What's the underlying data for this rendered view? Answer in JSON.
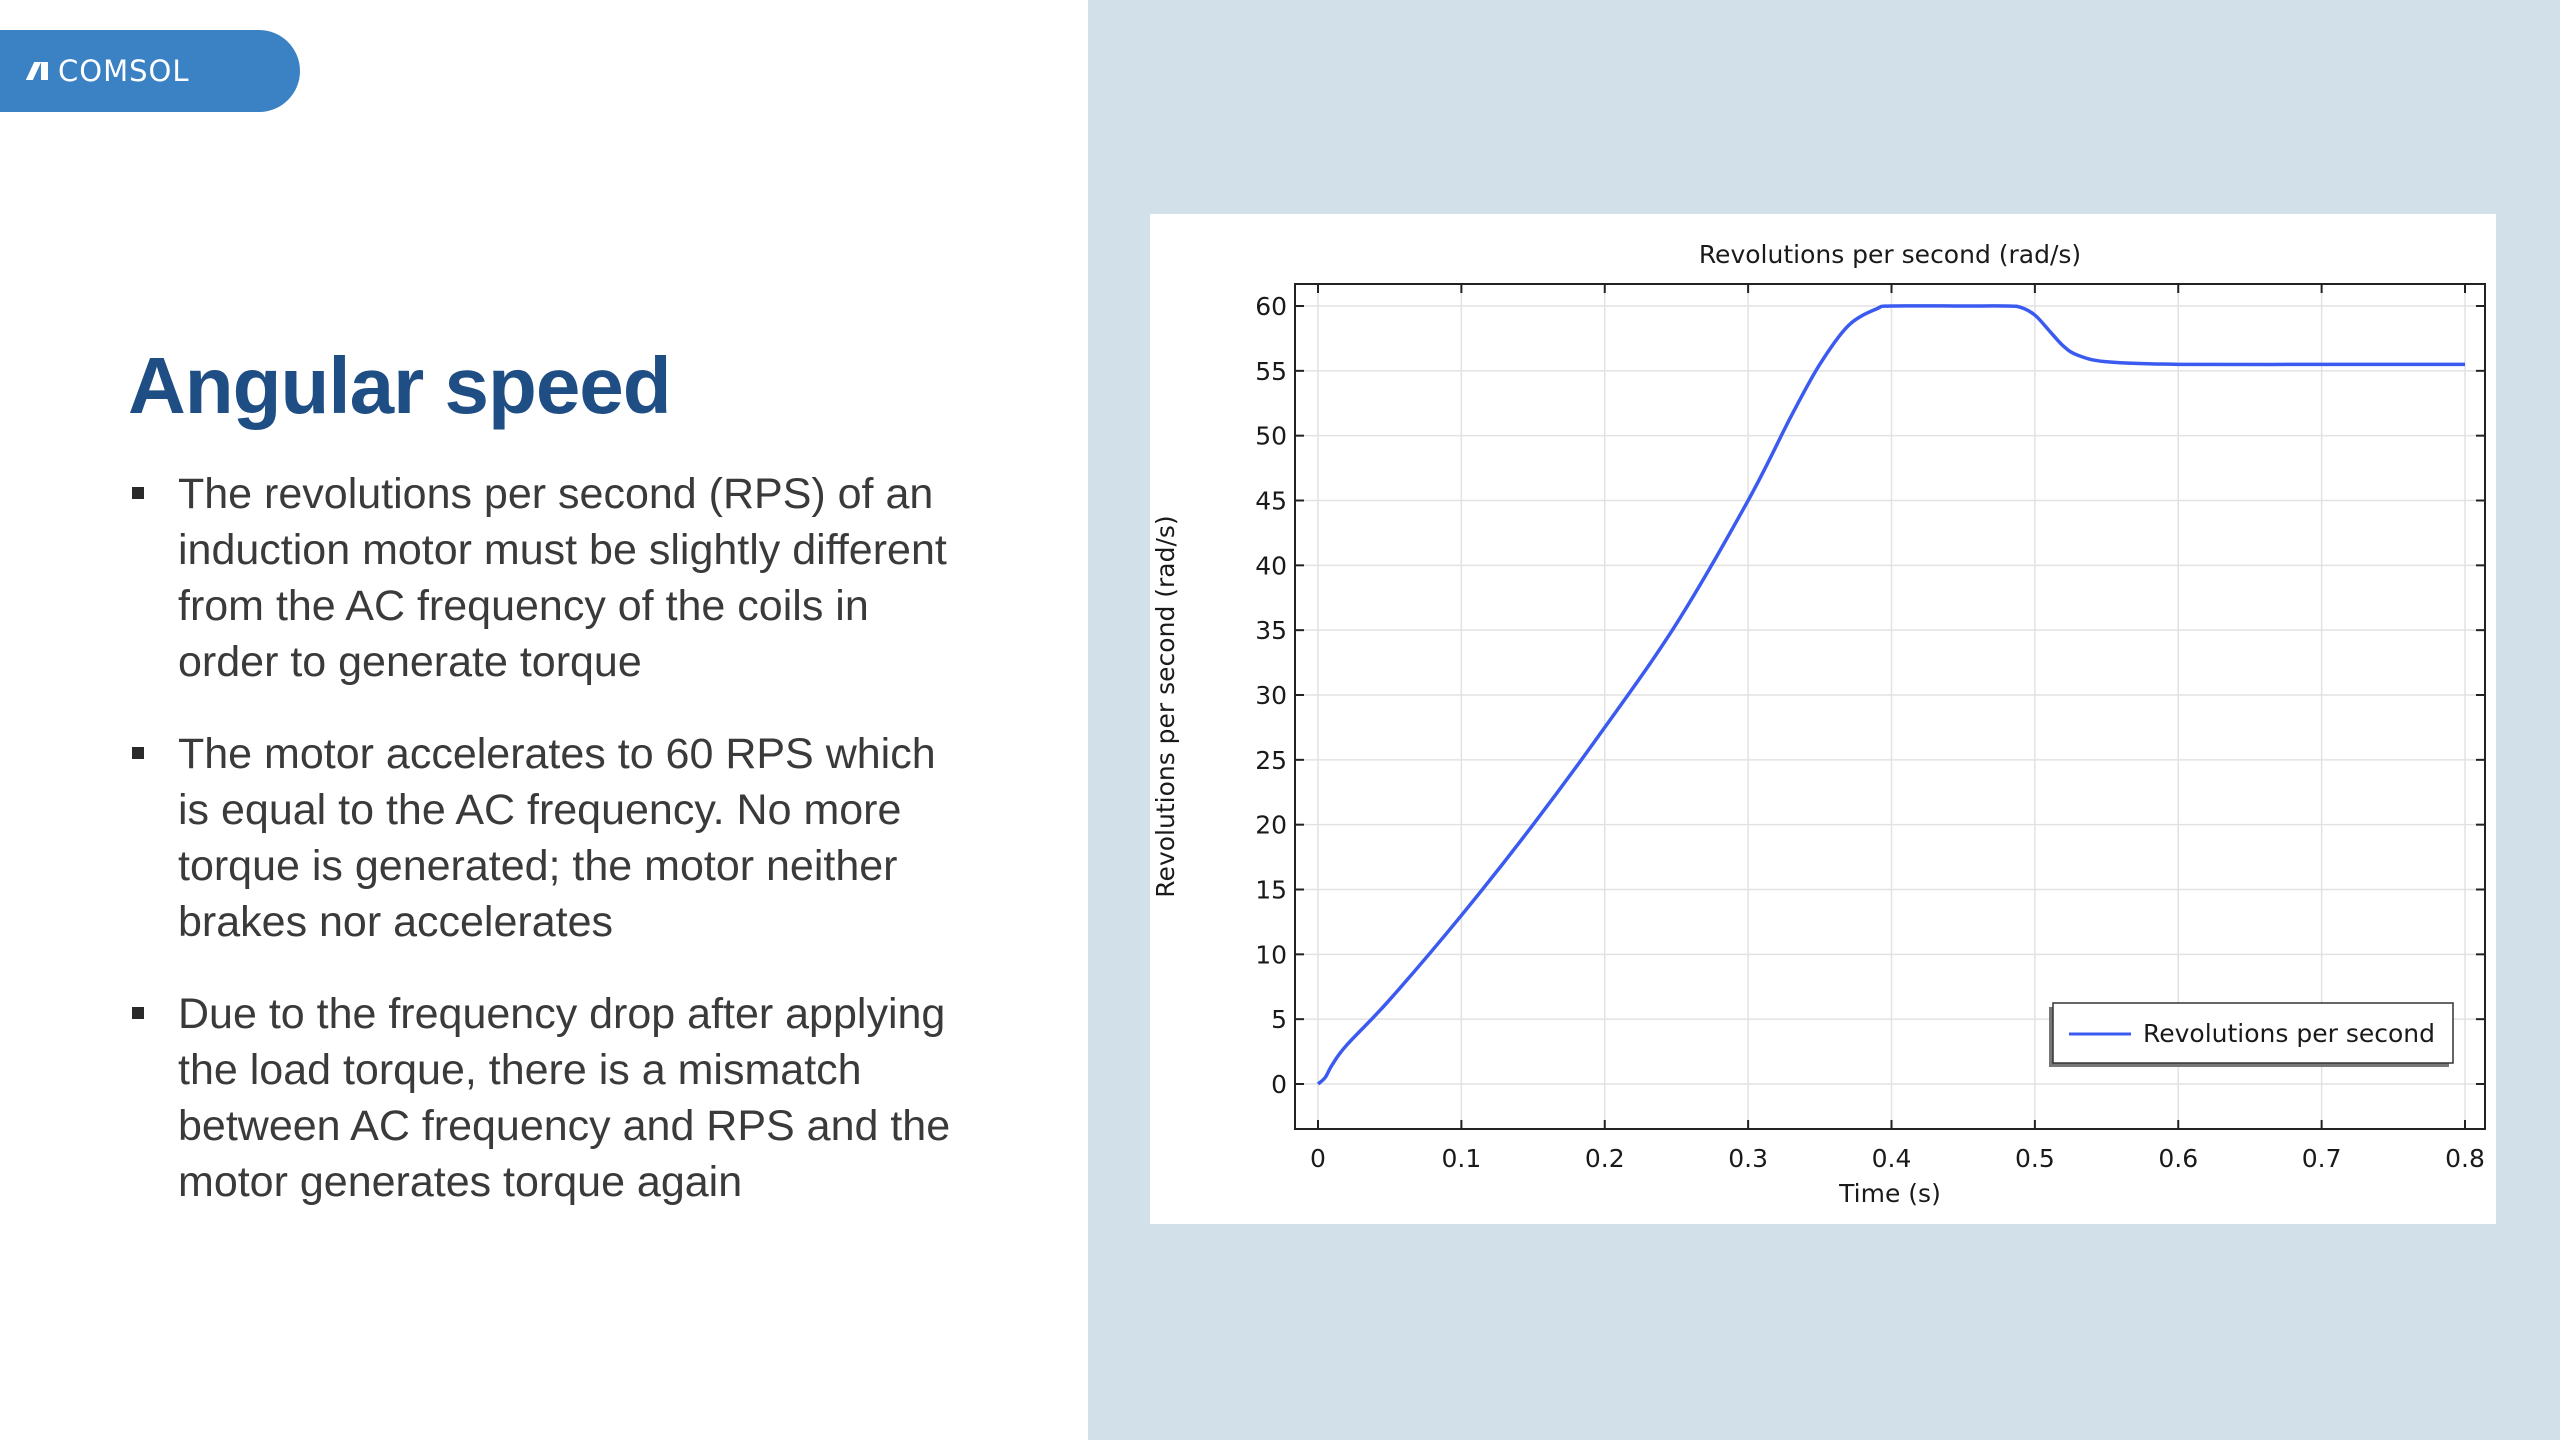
{
  "logo": {
    "text": "COMSOL",
    "icon": "comsol-logo-icon"
  },
  "slide": {
    "title": "Angular speed",
    "bullets": [
      "The revolutions per second (RPS) of an induction motor must be slightly different from the AC frequency of the coils in order to generate torque",
      "The motor accelerates to 60 RPS which is equal to the AC frequency. No more torque is generated; the motor neither brakes nor accelerates",
      "Due to the frequency drop after applying the load torque, there is a mismatch between AC frequency and RPS and the motor generates torque again"
    ]
  },
  "colors": {
    "title": "#1f4e85",
    "logo_bg": "#3b82c4",
    "panel_bg": "#d2e0ea",
    "series": "#3b5bf0"
  },
  "chart_data": {
    "type": "line",
    "title": "Revolutions per second (rad/s)",
    "xlabel": "Time (s)",
    "ylabel": "Revolutions per second (rad/s)",
    "xlim": [
      0,
      0.8
    ],
    "ylim": [
      0,
      60
    ],
    "xticks": [
      0,
      0.1,
      0.2,
      0.3,
      0.4,
      0.5,
      0.6,
      0.7,
      0.8
    ],
    "yticks": [
      0,
      5,
      10,
      15,
      20,
      25,
      30,
      35,
      40,
      45,
      50,
      55,
      60
    ],
    "grid": true,
    "legend_position": "bottom-right",
    "series": [
      {
        "name": "Revolutions per second",
        "x": [
          0,
          0.005,
          0.01,
          0.02,
          0.05,
          0.1,
          0.15,
          0.2,
          0.25,
          0.3,
          0.33,
          0.35,
          0.37,
          0.39,
          0.4,
          0.45,
          0.48,
          0.49,
          0.5,
          0.51,
          0.52,
          0.53,
          0.55,
          0.6,
          0.7,
          0.8
        ],
        "y": [
          0,
          0.5,
          1.5,
          3,
          6.5,
          13,
          20,
          27.5,
          35.5,
          45,
          51.5,
          55.5,
          58.5,
          59.8,
          60,
          60,
          60,
          59.9,
          59.3,
          58.1,
          56.9,
          56.2,
          55.7,
          55.5,
          55.5,
          55.5
        ]
      }
    ]
  }
}
